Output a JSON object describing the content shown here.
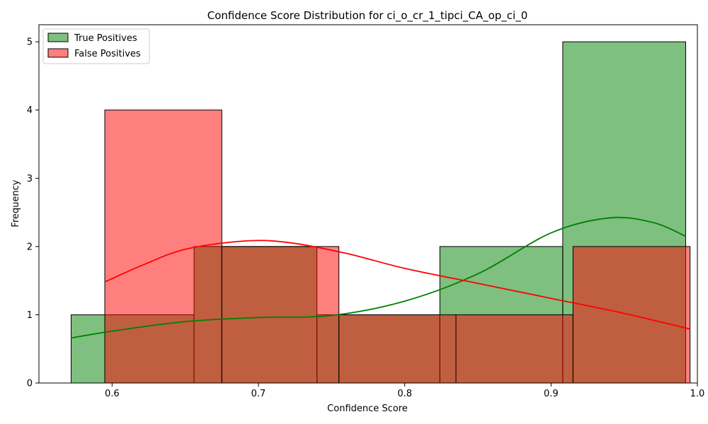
{
  "chart_data": {
    "type": "histogram",
    "title": "Confidence Score Distribution for ci_o_cr_1_tipci_CA_op_ci_0",
    "xlabel": "Confidence Score",
    "ylabel": "Frequency",
    "xlim": [
      0.55,
      1.0
    ],
    "ylim": [
      0,
      5.25
    ],
    "xticks": [
      0.6,
      0.7,
      0.8,
      0.9,
      1.0
    ],
    "xtick_labels": [
      "0.6",
      "0.7",
      "0.8",
      "0.9",
      "1.0"
    ],
    "yticks": [
      0,
      1,
      2,
      3,
      4,
      5
    ],
    "ytick_labels": [
      "0",
      "1",
      "2",
      "3",
      "4",
      "5"
    ],
    "grid": false,
    "legend": "upper-left",
    "series": [
      {
        "name": "True Positives",
        "color": "#008000",
        "bin_edges": [
          0.572,
          0.656,
          0.74,
          0.824,
          0.908,
          0.992
        ],
        "counts": [
          1,
          2,
          1,
          2,
          5
        ],
        "kde_x": [
          0.572,
          0.6,
          0.65,
          0.7,
          0.75,
          0.8,
          0.85,
          0.9,
          0.94,
          0.97,
          0.992
        ],
        "kde_y": [
          0.66,
          0.76,
          0.9,
          0.96,
          0.99,
          1.2,
          1.6,
          2.2,
          2.42,
          2.35,
          2.15
        ]
      },
      {
        "name": "False Positives",
        "color": "#ff0000",
        "bin_edges": [
          0.595,
          0.675,
          0.755,
          0.835,
          0.915,
          0.995
        ],
        "counts": [
          4,
          2,
          1,
          1,
          2
        ],
        "kde_x": [
          0.595,
          0.62,
          0.65,
          0.69,
          0.72,
          0.76,
          0.8,
          0.85,
          0.9,
          0.95,
          0.995
        ],
        "kde_y": [
          1.48,
          1.72,
          1.96,
          2.08,
          2.06,
          1.9,
          1.68,
          1.46,
          1.24,
          1.02,
          0.79
        ]
      }
    ]
  }
}
